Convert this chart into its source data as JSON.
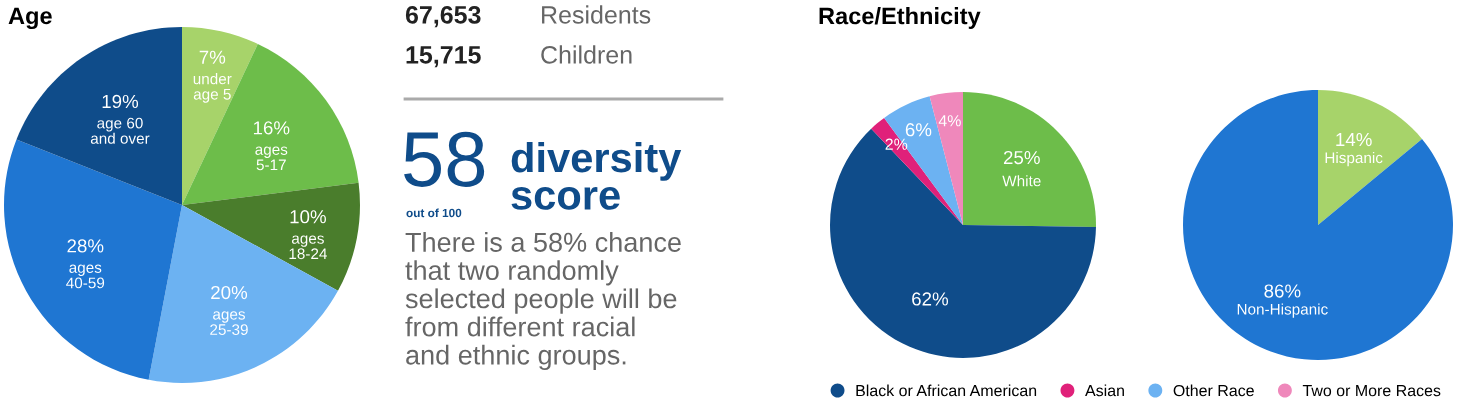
{
  "chart_data": [
    {
      "type": "pie",
      "title": "Age",
      "legend": false,
      "categories": [
        "under\nage 5",
        "ages\n5-17",
        "ages\n18-24",
        "ages\n25-39",
        "ages\n40-59",
        "age 60\nand over"
      ],
      "values": [
        7,
        16,
        10,
        20,
        28,
        19
      ],
      "value_labels": [
        "7%",
        "16%",
        "10%",
        "20%",
        "28%",
        "19%"
      ],
      "colors": [
        "#a7d36a",
        "#6dbd4a",
        "#4a7d2c",
        "#6cb2f2",
        "#1f76d2",
        "#0f4c8a"
      ]
    },
    {
      "type": "other",
      "annotations": [
        "67,653",
        "Residents",
        "15,715",
        "Children",
        "58",
        "out of 100",
        "diversity\nscore",
        "There is a 58% chance\nthat two randomly\nselected people will be\nfrom different racial\nand ethnic groups."
      ]
    },
    {
      "type": "pie",
      "title": "Race/Ethnicity",
      "legend": "bottom",
      "categories": [
        null,
        "Black or African American",
        "Asian",
        "Other Race",
        "Two or More Races"
      ],
      "values": [
        25,
        62,
        2,
        6,
        4
      ],
      "value_labels": [
        "25%\nWhite",
        "62%",
        "2%",
        "6%",
        "4%"
      ],
      "colors": [
        "#6dbd4a",
        "#0f4c8a",
        "#e0217a",
        "#6cb2f2",
        "#ef88bb"
      ]
    },
    {
      "type": "pie",
      "legend": false,
      "categories": [
        "Hispanic",
        "Non-Hispanic"
      ],
      "values": [
        14,
        86
      ],
      "value_labels": [
        "14%",
        "86%"
      ],
      "colors": [
        "#a7d36a",
        "#1f76d2"
      ]
    }
  ]
}
